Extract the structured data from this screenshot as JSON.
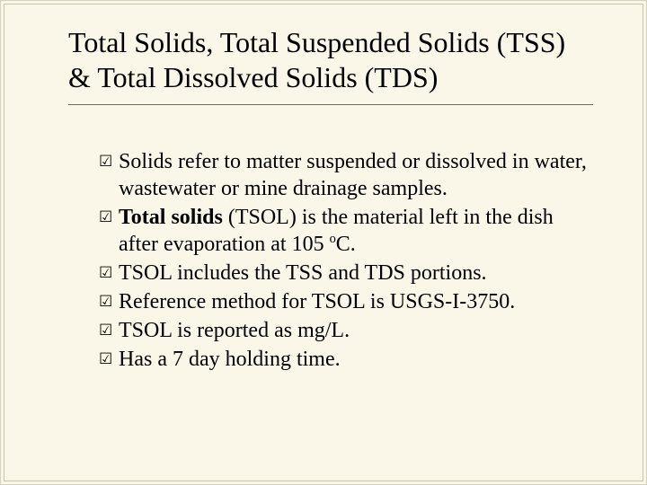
{
  "title": "Total Solids, Total Suspended Solids (TSS) & Total Dissolved Solids (TDS)",
  "bullet_icon": "☑",
  "bullets": [
    {
      "pre": "Solids refer to matter suspended or dissolved in water, wastewater or mine drainage samples."
    },
    {
      "bold": "Total solids",
      "post": " (TSOL) is the material left in the dish after evaporation at 105 ",
      "degree_o": "o",
      "degree_c": "C."
    },
    {
      "pre": "TSOL includes the TSS and TDS portions."
    },
    {
      "pre": "Reference method for TSOL is USGS-I-3750."
    },
    {
      "pre": "TSOL is reported as mg/L."
    },
    {
      "pre": "Has a 7 day holding time."
    }
  ],
  "colors": {
    "background": "#faf6e8",
    "text": "#000000",
    "rule": "#6b6654"
  }
}
